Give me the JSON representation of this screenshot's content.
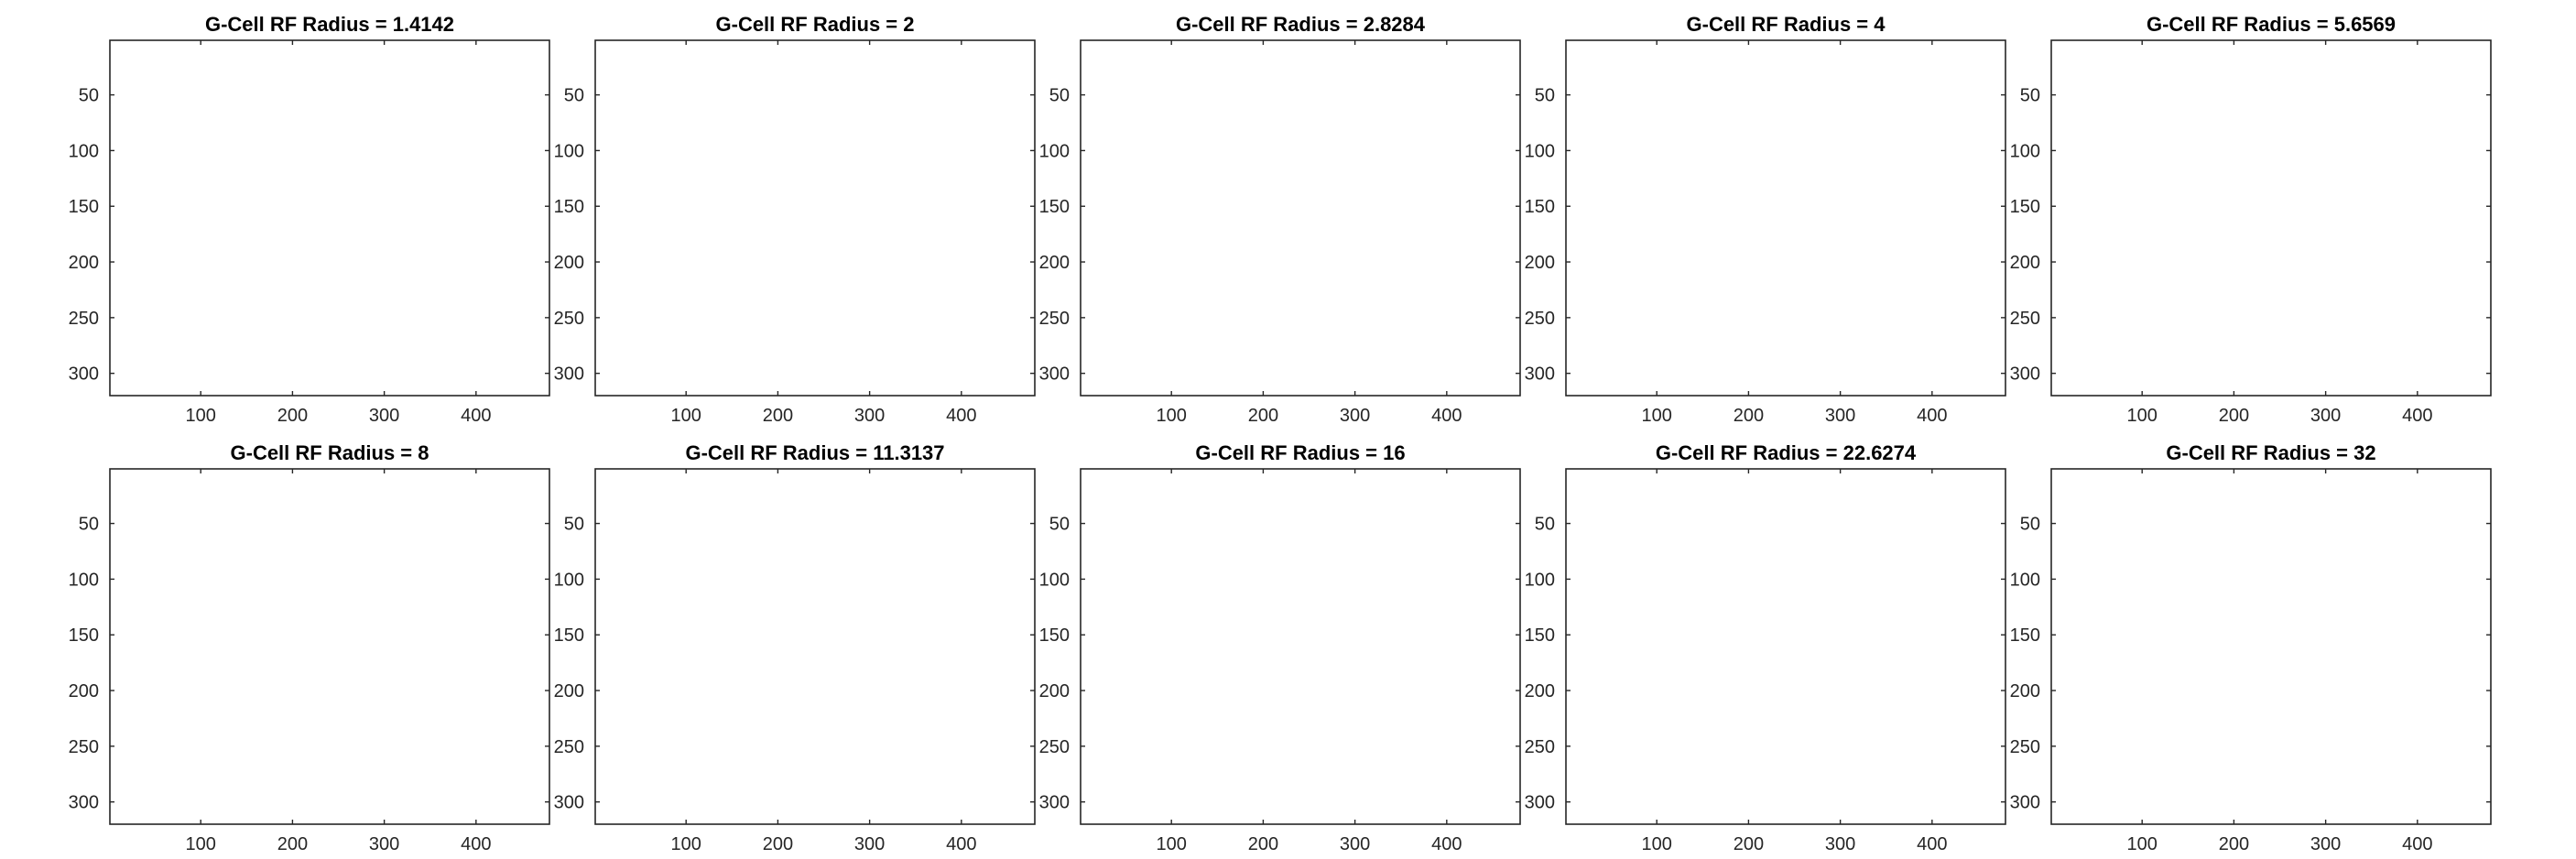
{
  "figure": {
    "rows": 2,
    "cols": 5
  },
  "chart_data": [
    {
      "type": "image",
      "title": "G-Cell RF Radius = 1.4142",
      "rf_radius": 1.4142,
      "xlim": [
        1,
        480
      ],
      "ylim": [
        1,
        320
      ],
      "y_reversed": true,
      "xticks": [
        100,
        200,
        300,
        400
      ],
      "yticks": [
        50,
        100,
        150,
        200,
        250,
        300
      ],
      "grid": false
    },
    {
      "type": "image",
      "title": "G-Cell RF Radius = 2",
      "rf_radius": 2,
      "xlim": [
        1,
        480
      ],
      "ylim": [
        1,
        320
      ],
      "y_reversed": true,
      "xticks": [
        100,
        200,
        300,
        400
      ],
      "yticks": [
        50,
        100,
        150,
        200,
        250,
        300
      ],
      "grid": false
    },
    {
      "type": "image",
      "title": "G-Cell RF Radius = 2.8284",
      "rf_radius": 2.8284,
      "xlim": [
        1,
        480
      ],
      "ylim": [
        1,
        320
      ],
      "y_reversed": true,
      "xticks": [
        100,
        200,
        300,
        400
      ],
      "yticks": [
        50,
        100,
        150,
        200,
        250,
        300
      ],
      "grid": false
    },
    {
      "type": "image",
      "title": "G-Cell RF Radius = 4",
      "rf_radius": 4,
      "xlim": [
        1,
        480
      ],
      "ylim": [
        1,
        320
      ],
      "y_reversed": true,
      "xticks": [
        100,
        200,
        300,
        400
      ],
      "yticks": [
        50,
        100,
        150,
        200,
        250,
        300
      ],
      "grid": false
    },
    {
      "type": "image",
      "title": "G-Cell RF Radius = 5.6569",
      "rf_radius": 5.6569,
      "xlim": [
        1,
        480
      ],
      "ylim": [
        1,
        320
      ],
      "y_reversed": true,
      "xticks": [
        100,
        200,
        300,
        400
      ],
      "yticks": [
        50,
        100,
        150,
        200,
        250,
        300
      ],
      "grid": false
    },
    {
      "type": "image",
      "title": "G-Cell RF Radius = 8",
      "rf_radius": 8,
      "xlim": [
        1,
        480
      ],
      "ylim": [
        1,
        320
      ],
      "y_reversed": true,
      "xticks": [
        100,
        200,
        300,
        400
      ],
      "yticks": [
        50,
        100,
        150,
        200,
        250,
        300
      ],
      "grid": false
    },
    {
      "type": "image",
      "title": "G-Cell RF Radius = 11.3137",
      "rf_radius": 11.3137,
      "xlim": [
        1,
        480
      ],
      "ylim": [
        1,
        320
      ],
      "y_reversed": true,
      "xticks": [
        100,
        200,
        300,
        400
      ],
      "yticks": [
        50,
        100,
        150,
        200,
        250,
        300
      ],
      "grid": false
    },
    {
      "type": "image",
      "title": "G-Cell RF Radius = 16",
      "rf_radius": 16,
      "xlim": [
        1,
        480
      ],
      "ylim": [
        1,
        320
      ],
      "y_reversed": true,
      "xticks": [
        100,
        200,
        300,
        400
      ],
      "yticks": [
        50,
        100,
        150,
        200,
        250,
        300
      ],
      "grid": false
    },
    {
      "type": "image",
      "title": "G-Cell RF Radius = 22.6274",
      "rf_radius": 22.6274,
      "xlim": [
        1,
        480
      ],
      "ylim": [
        1,
        320
      ],
      "y_reversed": true,
      "xticks": [
        100,
        200,
        300,
        400
      ],
      "yticks": [
        50,
        100,
        150,
        200,
        250,
        300
      ],
      "grid": false
    },
    {
      "type": "image",
      "title": "G-Cell RF Radius = 32",
      "rf_radius": 32,
      "xlim": [
        1,
        480
      ],
      "ylim": [
        1,
        320
      ],
      "y_reversed": true,
      "xticks": [
        100,
        200,
        300,
        400
      ],
      "yticks": [
        50,
        100,
        150,
        200,
        250,
        300
      ],
      "grid": false
    }
  ],
  "edge_colors": {
    "red": "#ff3b5a",
    "pink": "#ff3fd0",
    "magenta": "#d23cff",
    "blue": "#2a48ff",
    "cyan": "#20e0e0",
    "green": "#3ee05a",
    "lime": "#9bf03a",
    "yellow": "#f0e020",
    "orange": "#ff9a2a",
    "sky": "#27a8ff"
  }
}
